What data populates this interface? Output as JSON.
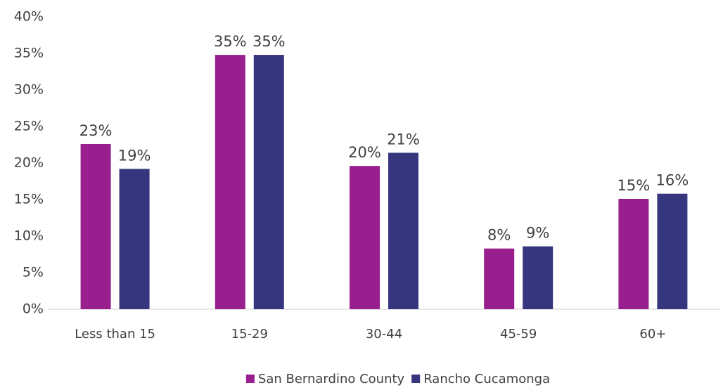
{
  "chart_data": {
    "type": "bar",
    "categories": [
      "Less than 15",
      "15-29",
      "30-44",
      "45-59",
      "60+"
    ],
    "series": [
      {
        "name": "San Bernardino County",
        "color": "#9a1f8e",
        "values": [
          22.6,
          34.8,
          19.6,
          8.3,
          15.1
        ],
        "value_labels": [
          "23%",
          "35%",
          "20%",
          "8%",
          "15%"
        ]
      },
      {
        "name": "Rancho Cucamonga",
        "color": "#36367f",
        "values": [
          19.2,
          34.8,
          21.4,
          8.6,
          15.8
        ],
        "value_labels": [
          "19%",
          "35%",
          "21%",
          "9%",
          "16%"
        ]
      }
    ],
    "ylim": [
      0,
      40
    ],
    "yticks": [
      {
        "value": 0,
        "label": "0%"
      },
      {
        "value": 5,
        "label": "5%"
      },
      {
        "value": 10,
        "label": "10%"
      },
      {
        "value": 15,
        "label": "15%"
      },
      {
        "value": 20,
        "label": "20%"
      },
      {
        "value": 25,
        "label": "25%"
      },
      {
        "value": 30,
        "label": "30%"
      },
      {
        "value": 35,
        "label": "35%"
      },
      {
        "value": 40,
        "label": "40%"
      }
    ],
    "grid": false,
    "legend": "bottom"
  }
}
